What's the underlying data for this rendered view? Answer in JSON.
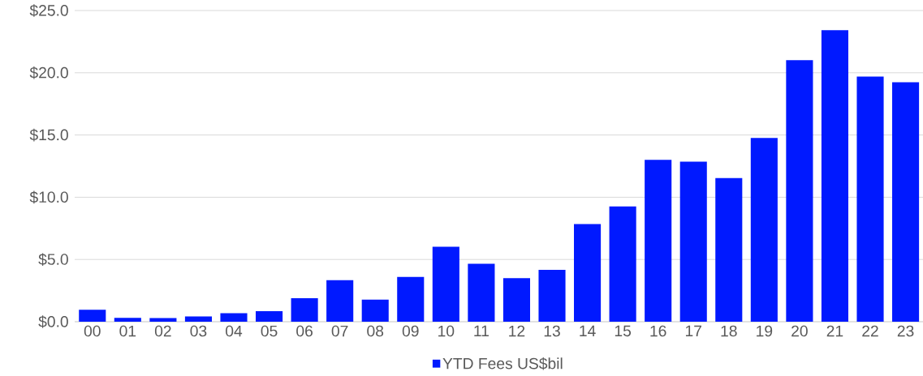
{
  "chart_data": {
    "type": "bar",
    "categories": [
      "00",
      "01",
      "02",
      "03",
      "04",
      "05",
      "06",
      "07",
      "08",
      "09",
      "10",
      "11",
      "12",
      "13",
      "14",
      "15",
      "16",
      "17",
      "18",
      "19",
      "20",
      "21",
      "22",
      "23"
    ],
    "series": [
      {
        "name": "YTD Fees US$bil",
        "color": "#0019ff",
        "values": [
          0.96,
          0.31,
          0.29,
          0.43,
          0.69,
          0.84,
          1.89,
          3.33,
          1.77,
          3.59,
          6.03,
          4.65,
          3.5,
          4.17,
          7.85,
          9.26,
          13.0,
          12.86,
          11.54,
          14.76,
          21.02,
          23.42,
          19.7,
          19.24
        ]
      }
    ],
    "ylim": [
      0,
      25
    ],
    "yticks": [
      {
        "value": 0,
        "label": "$0.0"
      },
      {
        "value": 5,
        "label": "$5.0"
      },
      {
        "value": 10,
        "label": "$10.0"
      },
      {
        "value": 15,
        "label": "$15.0"
      },
      {
        "value": 20,
        "label": "$20.0"
      },
      {
        "value": 25,
        "label": "$25.0"
      }
    ],
    "grid": "y",
    "legend": "bottom"
  }
}
